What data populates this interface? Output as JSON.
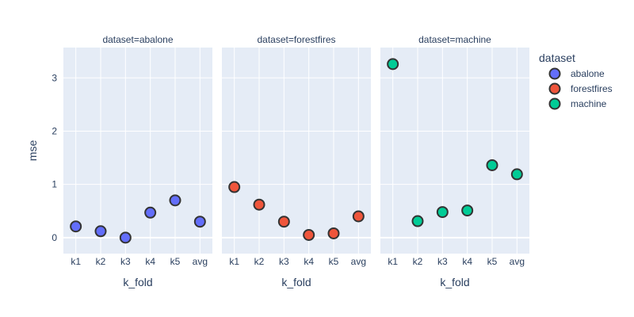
{
  "chart_data": {
    "type": "scatter",
    "facet_label": "dataset",
    "categories": [
      "k1",
      "k2",
      "k3",
      "k4",
      "k5",
      "avg"
    ],
    "xlabel": "k_fold",
    "ylabel": "mse",
    "ylim": [
      -0.3,
      3.57
    ],
    "yticks": [
      0,
      1,
      2,
      3
    ],
    "legend": {
      "title": "dataset",
      "position": "right"
    },
    "colors": {
      "background": "#e5ecf6",
      "grid": "#ffffff",
      "text": "#2a3f5f",
      "marker_outline": "#333333"
    },
    "series": [
      {
        "name": "abalone",
        "facet_title": "dataset=abalone",
        "color": "#636efa",
        "values": [
          0.21,
          0.12,
          0.0,
          0.47,
          0.7,
          0.3
        ]
      },
      {
        "name": "forestfires",
        "facet_title": "dataset=forestfires",
        "color": "#ef553b",
        "values": [
          0.95,
          0.62,
          0.3,
          0.05,
          0.08,
          0.4
        ]
      },
      {
        "name": "machine",
        "facet_title": "dataset=machine",
        "color": "#00cc96",
        "values": [
          3.26,
          0.31,
          0.48,
          0.51,
          1.36,
          1.19
        ]
      }
    ]
  }
}
